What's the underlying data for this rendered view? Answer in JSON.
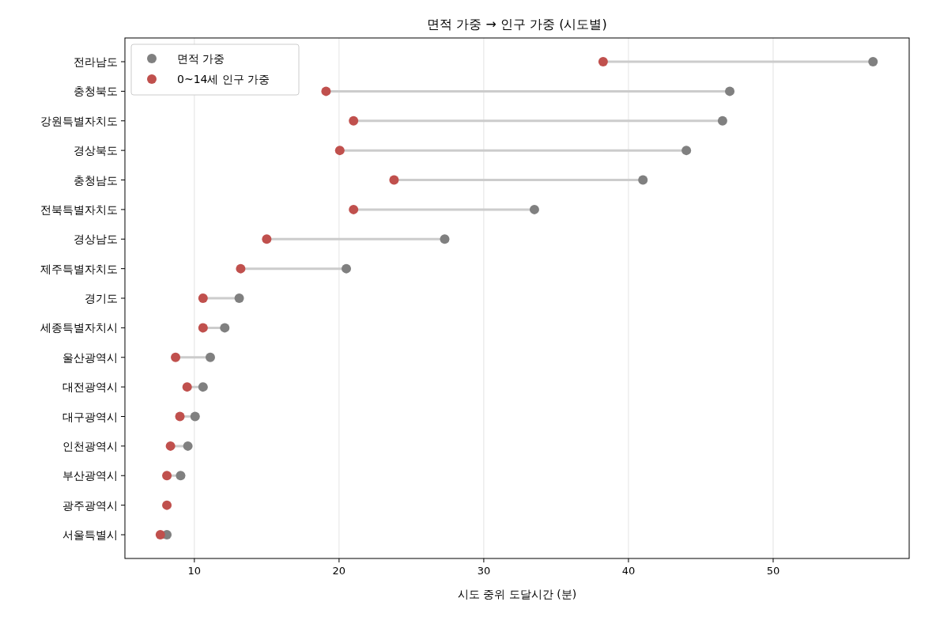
{
  "chart_data": {
    "type": "scatter",
    "orientation": "horizontal",
    "title": "면적 가중 → 인구 가중 (시도별)",
    "xlabel": "시도 중위 도달시간 (분)",
    "categories": [
      "전라남도",
      "충청북도",
      "강원특별자치도",
      "경상북도",
      "충청남도",
      "전북특별자치도",
      "경상남도",
      "제주특별자치도",
      "경기도",
      "세종특별자치시",
      "울산광역시",
      "대전광역시",
      "대구광역시",
      "인천광역시",
      "부산광역시",
      "광주광역시",
      "서울특별시"
    ],
    "series": [
      {
        "name": "면적 가중",
        "color": "#808080",
        "values": [
          56.9,
          47.0,
          46.5,
          44.0,
          41.0,
          33.5,
          27.3,
          20.5,
          13.1,
          12.1,
          11.1,
          10.6,
          10.05,
          9.55,
          9.05,
          null,
          8.1
        ]
      },
      {
        "name": "0~14세 인구 가중",
        "color": "#c0504d",
        "values": [
          38.25,
          19.1,
          21.0,
          20.05,
          23.8,
          21.0,
          15.0,
          13.2,
          10.6,
          10.6,
          8.7,
          9.5,
          9.0,
          8.35,
          8.1,
          8.1,
          7.65
        ]
      }
    ],
    "xlim": [
      5.2,
      59.4
    ],
    "xticks": [
      10,
      20,
      30,
      40,
      50
    ],
    "grid": "x",
    "legend": "top left",
    "marker": "circle"
  }
}
